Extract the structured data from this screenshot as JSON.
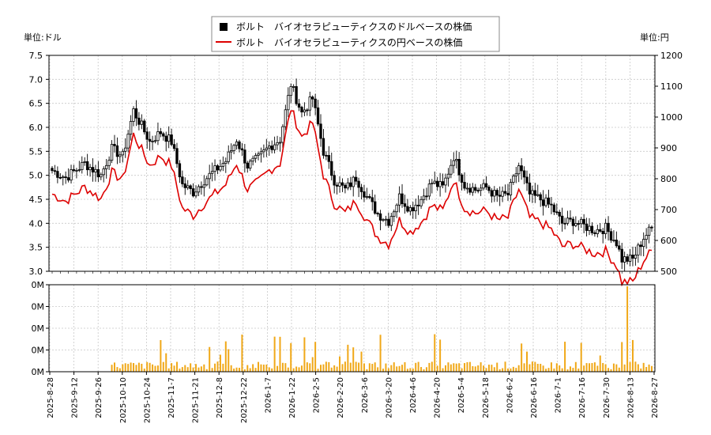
{
  "legend": {
    "usd_label": "ボルト　バイオセラピューティクスのドルベースの株価",
    "jpy_label": "ボルト　バイオセラピューティクスの円ベースの株価",
    "usd_color": "#000000",
    "jpy_color": "#dd0000"
  },
  "axes": {
    "left_unit": "単位:ドル",
    "right_unit": "単位:円",
    "volume_unit_label": "0M"
  },
  "chart_data": [
    {
      "type": "candlestick",
      "x_dates": [
        "2025-8-28",
        "2025-9-12",
        "2025-9-26",
        "2025-10-10",
        "2025-10-24",
        "2025-11-7",
        "2025-11-21",
        "2025-12-8",
        "2025-12-22",
        "2026-1-7",
        "2026-1-22",
        "2026-2-5",
        "2026-2-20",
        "2026-3-6",
        "2026-3-20",
        "2026-4-6",
        "2026-4-20",
        "2026-5-4",
        "2026-5-18",
        "2026-6-2",
        "2026-6-16",
        "2026-7-1",
        "2026-7-16",
        "2026-7-30",
        "2026-8-13",
        "2026-8-27"
      ],
      "ylim_usd": [
        3.0,
        7.5
      ],
      "yticks_usd": [
        "3.0",
        "3.5",
        "4.0",
        "4.5",
        "5.0",
        "5.5",
        "6.0",
        "6.5",
        "7.0",
        "7.5"
      ],
      "ylim_jpy": [
        500,
        1200
      ],
      "yticks_jpy": [
        "500",
        "600",
        "700",
        "800",
        "900",
        "1000",
        "1100",
        "1200"
      ],
      "grid": true,
      "usd_close_anchors": [
        [
          0,
          5.1
        ],
        [
          5,
          4.95
        ],
        [
          12,
          5.25
        ],
        [
          18,
          5.0
        ],
        [
          22,
          5.55
        ],
        [
          26,
          5.4
        ],
        [
          30,
          6.35
        ],
        [
          36,
          5.7
        ],
        [
          40,
          5.9
        ],
        [
          44,
          5.7
        ],
        [
          48,
          4.8
        ],
        [
          52,
          4.65
        ],
        [
          56,
          4.9
        ],
        [
          60,
          5.1
        ],
        [
          64,
          5.3
        ],
        [
          68,
          5.75
        ],
        [
          72,
          5.2
        ],
        [
          76,
          5.35
        ],
        [
          80,
          5.6
        ],
        [
          84,
          5.75
        ],
        [
          88,
          6.9
        ],
        [
          92,
          6.3
        ],
        [
          96,
          6.6
        ],
        [
          100,
          5.5
        ],
        [
          104,
          4.9
        ],
        [
          108,
          4.7
        ],
        [
          112,
          4.95
        ],
        [
          116,
          4.55
        ],
        [
          120,
          4.2
        ],
        [
          124,
          4.05
        ],
        [
          128,
          4.55
        ],
        [
          132,
          4.3
        ],
        [
          136,
          4.5
        ],
        [
          140,
          4.85
        ],
        [
          144,
          4.75
        ],
        [
          148,
          5.4
        ],
        [
          152,
          4.8
        ],
        [
          156,
          4.7
        ],
        [
          160,
          4.75
        ],
        [
          164,
          4.55
        ],
        [
          168,
          4.6
        ],
        [
          172,
          5.2
        ],
        [
          176,
          4.6
        ],
        [
          180,
          4.5
        ],
        [
          184,
          4.35
        ],
        [
          188,
          4.0
        ],
        [
          192,
          4.05
        ],
        [
          196,
          3.95
        ],
        [
          200,
          3.85
        ],
        [
          204,
          3.9
        ],
        [
          208,
          3.6
        ],
        [
          210,
          3.25
        ],
        [
          214,
          3.25
        ],
        [
          218,
          3.7
        ],
        [
          221,
          3.9
        ]
      ],
      "jpy_ratio": 154
    },
    {
      "type": "bar",
      "series": "volume",
      "ylim": [
        0,
        5
      ],
      "yticks": [
        "0M",
        "0M",
        "0M",
        "0M",
        "0M"
      ],
      "grid": true
    }
  ]
}
